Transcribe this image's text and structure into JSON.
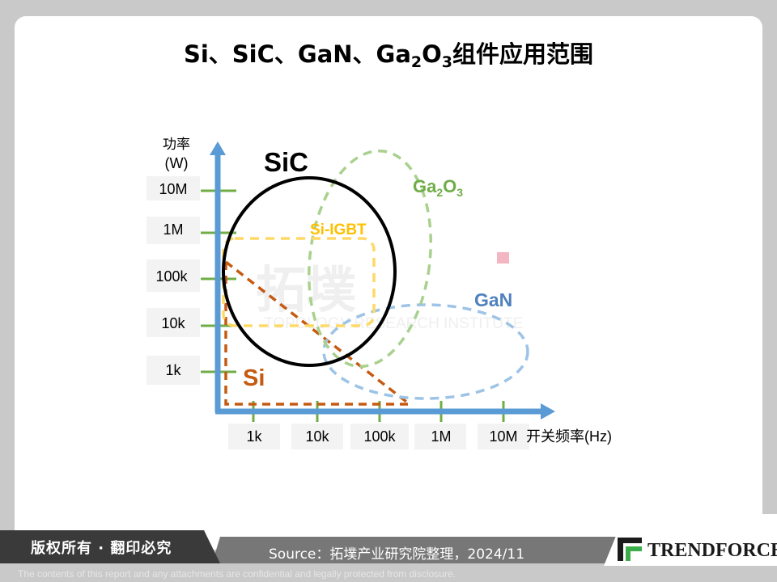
{
  "title": {
    "prefix": "Si、SiC、GaN、Ga",
    "sub1": "2",
    "mid": "O",
    "sub2": "3",
    "suffix": "组件应用范围"
  },
  "y_axis": {
    "label_line1": "功率",
    "label_line2": "(W)",
    "ticks": [
      "10M",
      "1M",
      "100k",
      "10k",
      "1k"
    ]
  },
  "x_axis": {
    "label": "开关频率(Hz)",
    "ticks": [
      "1k",
      "10k",
      "100k",
      "1M",
      "10M"
    ]
  },
  "regions": {
    "sic": "SiC",
    "ga2o3": {
      "base": "Ga",
      "sub1": "2",
      "mid": "O",
      "sub2": "3"
    },
    "si_igbt": "Si-IGBT",
    "gan": "GaN",
    "si": "Si"
  },
  "colors": {
    "axis": "#5b9bd5",
    "tick": "#70ad47",
    "sic": "#000000",
    "ga2o3": "#a9d18e",
    "si_igbt": "#ffd966",
    "gan": "#9dc3e6",
    "si": "#c55a11",
    "marker": "#f4b6c2"
  },
  "watermark": {
    "main": "拓墣",
    "sub": "TOPOLOGY RESEARCH INSTITUTE"
  },
  "footer": {
    "rights": "版权所有 · 翻印必究",
    "source": "Source：拓墣产业研究院整理，2024/11",
    "logo": "TRENDFORCE",
    "disclaimer": "The contents of this report and any attachments are confidential and legally protected from disclosure."
  }
}
